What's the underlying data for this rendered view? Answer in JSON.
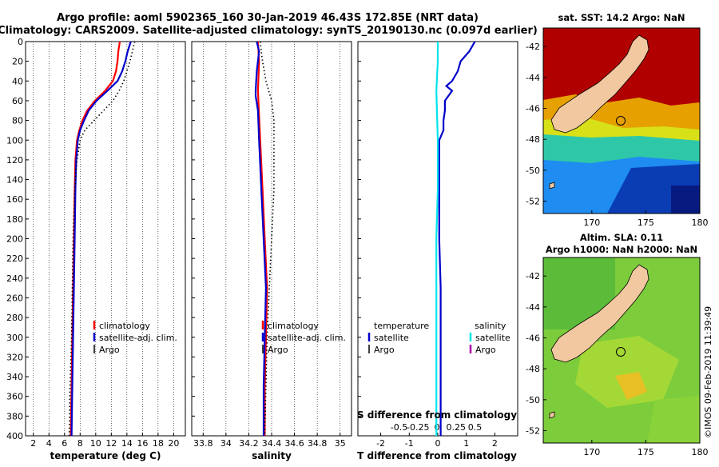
{
  "header": {
    "title_line1": "Argo profile: aoml 5902365_160 30-Jan-2019 46.43S 172.85E (NRT data)",
    "title_line2": "Climatology: CARS2009. Satellite-adjusted climatology: synTS_20190130.nc (0.097d earlier)"
  },
  "colors": {
    "climatology": "#ff0000",
    "satellite": "#0000cc",
    "argo": "#000000",
    "sal_satellite": "#00e5ee",
    "sal_argo": "#aa00aa"
  },
  "chart_data": [
    {
      "type": "line",
      "name": "temperature",
      "xlabel": "temperature (deg C)",
      "ylabel": "",
      "xlim": [
        1,
        21.5
      ],
      "ylim": [
        400,
        0
      ],
      "xticks": [
        "2",
        "4",
        "6",
        "8",
        "10",
        "12",
        "14",
        "16",
        "18",
        "20"
      ],
      "xtick_values": [
        2,
        4,
        6,
        8,
        10,
        12,
        14,
        16,
        18,
        20
      ],
      "yticks": [
        "0",
        "20",
        "40",
        "60",
        "80",
        "100",
        "120",
        "140",
        "160",
        "180",
        "200",
        "220",
        "240",
        "260",
        "280",
        "300",
        "320",
        "340",
        "360",
        "380",
        "400"
      ],
      "ytick_values": [
        0,
        20,
        40,
        60,
        80,
        100,
        120,
        140,
        160,
        180,
        200,
        220,
        240,
        260,
        280,
        300,
        320,
        340,
        360,
        380,
        400
      ],
      "legend": [
        "climatology",
        "satellite-adj. clim.",
        "Argo"
      ],
      "series": [
        {
          "name": "climatology",
          "color_key": "climatology",
          "style": "solid",
          "depth": [
            0,
            10,
            20,
            30,
            40,
            50,
            60,
            70,
            80,
            90,
            100,
            120,
            150,
            200,
            250,
            300,
            350,
            400
          ],
          "values": [
            13.1,
            12.9,
            12.8,
            12.6,
            12.2,
            11.2,
            9.9,
            8.9,
            8.3,
            7.9,
            7.6,
            7.4,
            7.3,
            7.2,
            7.1,
            7.0,
            6.9,
            6.8
          ]
        },
        {
          "name": "satellite-adj. clim.",
          "color_key": "satellite",
          "style": "solid",
          "depth": [
            0,
            10,
            20,
            30,
            40,
            50,
            60,
            70,
            80,
            90,
            100,
            120,
            150,
            200,
            250,
            300,
            350,
            400
          ],
          "values": [
            14.5,
            14.1,
            13.8,
            13.4,
            12.8,
            11.5,
            10.1,
            9.1,
            8.5,
            8.0,
            7.7,
            7.5,
            7.4,
            7.3,
            7.2,
            7.1,
            7.0,
            6.9
          ]
        },
        {
          "name": "Argo",
          "color_key": "argo",
          "style": "dotted",
          "depth": [
            0,
            10,
            20,
            30,
            40,
            50,
            60,
            70,
            80,
            90,
            100,
            120,
            150,
            200,
            250,
            300,
            350,
            400
          ],
          "values": [
            15.0,
            14.7,
            14.4,
            14.0,
            13.6,
            13.0,
            12.2,
            11.0,
            9.8,
            8.6,
            8.0,
            7.6,
            7.3,
            7.1,
            7.0,
            6.9,
            6.7,
            6.6
          ]
        }
      ]
    },
    {
      "type": "line",
      "name": "salinity",
      "xlabel": "salinity",
      "ylabel": "",
      "xlim": [
        33.7,
        35.1
      ],
      "ylim": [
        400,
        0
      ],
      "xticks": [
        "33.8",
        "34",
        "34.2",
        "34.4",
        "34.6",
        "34.8",
        "35"
      ],
      "xtick_values": [
        33.8,
        34.0,
        34.2,
        34.4,
        34.6,
        34.8,
        35.0
      ],
      "legend": [
        "climatology",
        "satellite-adj. clim.",
        "Argo"
      ],
      "series": [
        {
          "name": "climatology",
          "color_key": "climatology",
          "style": "solid",
          "depth": [
            0,
            20,
            50,
            100,
            150,
            200,
            250,
            300,
            350,
            400
          ],
          "values": [
            34.28,
            34.29,
            34.28,
            34.3,
            34.32,
            34.34,
            34.36,
            34.35,
            34.34,
            34.34
          ]
        },
        {
          "name": "satellite-adj. clim.",
          "color_key": "satellite",
          "style": "solid",
          "depth": [
            0,
            10,
            30,
            50,
            55,
            70,
            100,
            150,
            200,
            250,
            300,
            350,
            400
          ],
          "values": [
            34.27,
            34.29,
            34.27,
            34.26,
            34.26,
            34.28,
            34.29,
            34.31,
            34.33,
            34.35,
            34.34,
            34.33,
            34.33
          ]
        },
        {
          "name": "Argo",
          "color_key": "argo",
          "style": "dotted",
          "depth": [
            0,
            20,
            40,
            60,
            80,
            100,
            150,
            200,
            250,
            300,
            350,
            400
          ],
          "values": [
            34.3,
            34.32,
            34.35,
            34.4,
            34.42,
            34.42,
            34.42,
            34.4,
            34.38,
            34.36,
            34.35,
            34.34
          ]
        }
      ]
    },
    {
      "type": "line",
      "name": "difference",
      "xlabel": "T difference from climatology",
      "xticks": [
        "-2",
        "-1",
        "0",
        "1",
        "2"
      ],
      "xtick_values": [
        -2,
        -1,
        0,
        1,
        2
      ],
      "xlim": [
        -2.8,
        2.8
      ],
      "secondary_label": "S difference from climatology",
      "secondary_ticks": [
        "-0.5",
        "-0.25",
        "0",
        "0.25",
        "0.5"
      ],
      "secondary_tick_values": [
        -0.5,
        -0.25,
        0,
        0.25,
        0.5
      ],
      "ylim": [
        400,
        0
      ],
      "legend_temperature_title": "temperature",
      "legend_salinity_title": "salinity",
      "legend_temperature": [
        "satellite",
        "Argo"
      ],
      "legend_salinity": [
        "satellite",
        "Argo"
      ],
      "series": [
        {
          "name": "T satellite",
          "color_key": "satellite",
          "style": "solid",
          "depth": [
            0,
            5,
            10,
            20,
            30,
            40,
            45,
            50,
            60,
            70,
            80,
            90,
            100,
            150,
            200,
            250,
            300,
            350,
            400
          ],
          "values": [
            1.3,
            1.2,
            1.1,
            0.8,
            0.7,
            0.5,
            0.3,
            0.5,
            0.25,
            0.25,
            0.2,
            0.2,
            0.05,
            0.05,
            0.05,
            0.1,
            0.1,
            0.1,
            0.1
          ]
        },
        {
          "name": "S satellite",
          "color_key": "sal_satellite",
          "style": "solid",
          "depth": [
            0,
            20,
            50,
            100,
            150,
            200,
            250,
            300,
            350,
            400
          ],
          "values": [
            0.0,
            0.0,
            -0.05,
            0.0,
            0.0,
            -0.05,
            -0.05,
            -0.05,
            -0.05,
            -0.05
          ]
        }
      ]
    },
    {
      "type": "heatmap",
      "name": "sst-map",
      "title": "sat. SST: 14.2 Argo: NaN",
      "xticks": [
        "170",
        "175",
        "180"
      ],
      "xtick_values": [
        170,
        175,
        180
      ],
      "yticks": [
        "-42",
        "-44",
        "-46",
        "-48",
        "-50",
        "-52"
      ],
      "ytick_values": [
        -42,
        -44,
        -46,
        -48,
        -50,
        -52
      ],
      "xlim": [
        165.5,
        180
      ],
      "ylim": [
        -52.8,
        -40.8
      ],
      "argo_position": {
        "lon": 172.85,
        "lat": -46.43
      }
    },
    {
      "type": "heatmap",
      "name": "sla-map",
      "title_line1": "Altim. SLA: 0.11",
      "title_line2": "Argo h1000: NaN h2000: NaN",
      "xticks": [
        "170",
        "175",
        "180"
      ],
      "xtick_values": [
        170,
        175,
        180
      ],
      "yticks": [
        "-42",
        "-44",
        "-46",
        "-48",
        "-50",
        "-52"
      ],
      "ytick_values": [
        -42,
        -44,
        -46,
        -48,
        -50,
        -52
      ],
      "xlim": [
        165.5,
        180
      ],
      "ylim": [
        -52.8,
        -40.8
      ],
      "argo_position": {
        "lon": 172.85,
        "lat": -46.43
      }
    }
  ],
  "credit": "©IMOS 09-Feb-2019 11:39:49"
}
